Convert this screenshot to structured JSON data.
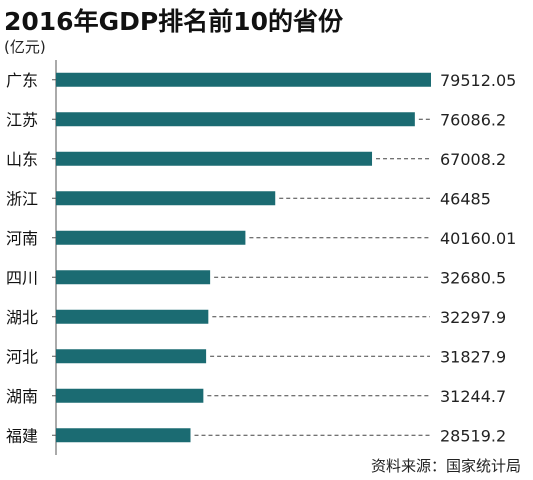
{
  "chart_data": {
    "type": "bar",
    "orientation": "horizontal",
    "title": "2016年GDP排名前10的省份",
    "unit": "(亿元)",
    "categories": [
      "广东",
      "江苏",
      "山东",
      "浙江",
      "河南",
      "四川",
      "湖北",
      "河北",
      "湖南",
      "福建"
    ],
    "values": [
      79512.05,
      76086.2,
      67008.2,
      46485,
      40160.01,
      32680.5,
      32297.9,
      31827.9,
      31244.7,
      28519.2
    ],
    "value_labels": [
      "79512.05",
      "76086.2",
      "67008.2",
      "46485",
      "40160.01",
      "32680.5",
      "32297.9",
      "31827.9",
      "31244.7",
      "28519.2"
    ],
    "bar_color": "#1b6b72",
    "leader_line": "dashed",
    "source": "资料来源：国家统计局"
  }
}
